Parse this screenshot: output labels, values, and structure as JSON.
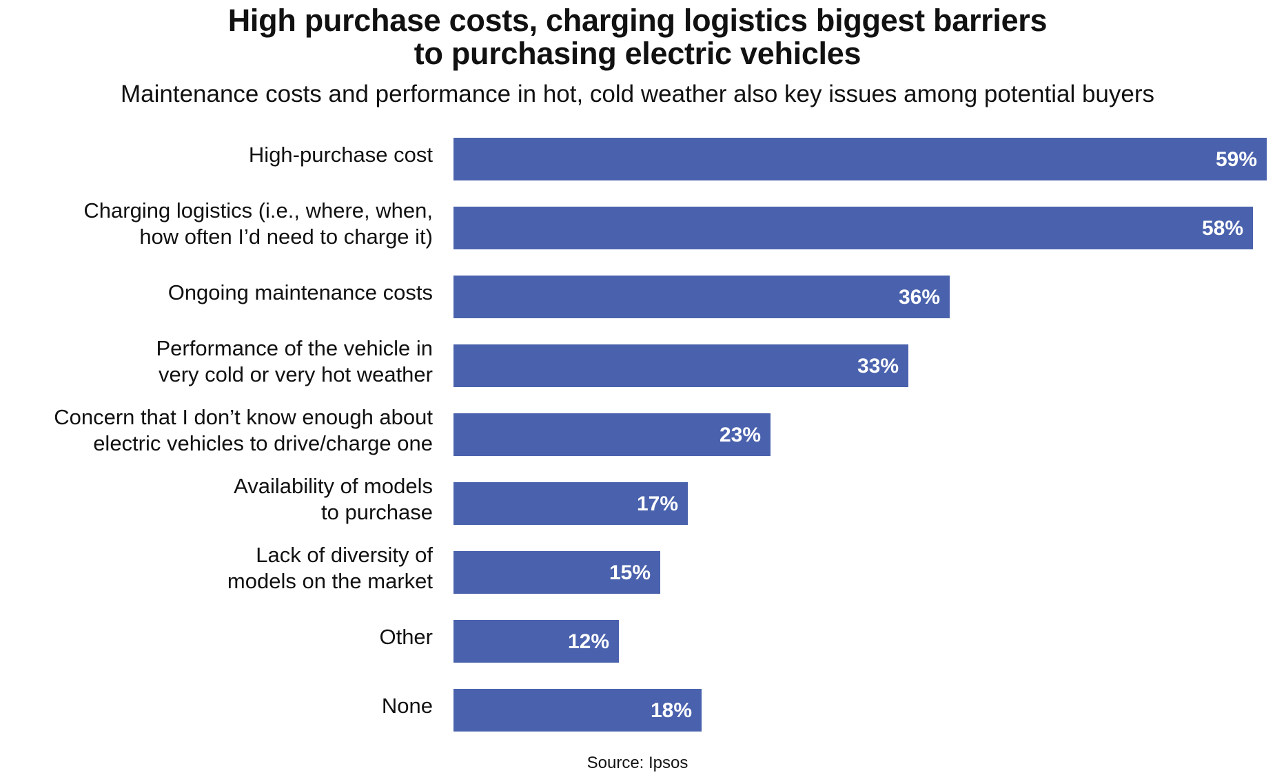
{
  "title": {
    "line1": "High purchase costs, charging logistics biggest barriers",
    "line2": "to purchasing electric vehicles"
  },
  "subtitle": "Maintenance costs and performance in hot, cold weather also key issues among potential buyers",
  "source": "Source: Ipsos",
  "colors": {
    "bar": "#4a62ad",
    "value_text": "#ffffff",
    "text": "#111111"
  },
  "bars": [
    {
      "lines": [
        "High-purchase cost"
      ],
      "value": 59,
      "value_label": "59%"
    },
    {
      "lines": [
        "Charging logistics (i.e., where, when,",
        "how often I’d need to charge it)"
      ],
      "value": 58,
      "value_label": "58%"
    },
    {
      "lines": [
        "Ongoing maintenance costs"
      ],
      "value": 36,
      "value_label": "36%"
    },
    {
      "lines": [
        "Performance of the vehicle in",
        "very cold or very hot weather"
      ],
      "value": 33,
      "value_label": "33%"
    },
    {
      "lines": [
        "Concern that I don’t know enough about",
        "electric vehicles to drive/charge one"
      ],
      "value": 23,
      "value_label": "23%"
    },
    {
      "lines": [
        "Availability of models",
        "to purchase"
      ],
      "value": 17,
      "value_label": "17%"
    },
    {
      "lines": [
        "Lack of diversity of",
        "models on the market"
      ],
      "value": 15,
      "value_label": "15%"
    },
    {
      "lines": [
        "Other"
      ],
      "value": 12,
      "value_label": "12%"
    },
    {
      "lines": [
        "None"
      ],
      "value": 18,
      "value_label": "18%"
    }
  ],
  "chart_data": {
    "type": "bar",
    "orientation": "horizontal",
    "title": "High purchase costs, charging logistics biggest barriers to purchasing electric vehicles",
    "subtitle": "Maintenance costs and performance in hot, cold weather also key issues among potential buyers",
    "categories": [
      "High-purchase cost",
      "Charging logistics (i.e., where, when, how often I’d need to charge it)",
      "Ongoing maintenance costs",
      "Performance of the vehicle in very cold or very hot weather",
      "Concern that I don’t know enough about electric vehicles to drive/charge one",
      "Availability of models to purchase",
      "Lack of diversity of models on the market",
      "Other",
      "None"
    ],
    "values": [
      59,
      58,
      36,
      33,
      23,
      17,
      15,
      12,
      18
    ],
    "unit": "%",
    "data_labels": [
      "59%",
      "58%",
      "36%",
      "33%",
      "23%",
      "17%",
      "15%",
      "12%",
      "18%"
    ],
    "xlabel": "",
    "ylabel": "",
    "xlim": [
      0,
      60
    ],
    "grid": false,
    "legend": null,
    "source": "Source: Ipsos"
  }
}
